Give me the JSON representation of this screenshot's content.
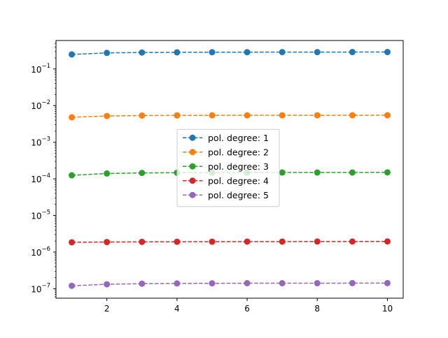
{
  "chart_data": {
    "type": "line",
    "title": "",
    "xlabel": "",
    "ylabel": "",
    "yscale": "log",
    "xlim": [
      0.55,
      10.45
    ],
    "ylim": [
      5.5e-08,
      0.6
    ],
    "x_ticks": [
      2,
      4,
      6,
      8,
      10
    ],
    "x_tick_labels": [
      "2",
      "4",
      "6",
      "8",
      "10"
    ],
    "y_ticks": [
      1e-07,
      1e-06,
      1e-05,
      0.0001,
      0.001,
      0.01,
      0.1
    ],
    "y_tick_labels": [
      {
        "base": "10",
        "exp": "−7"
      },
      {
        "base": "10",
        "exp": "−6"
      },
      {
        "base": "10",
        "exp": "−5"
      },
      {
        "base": "10",
        "exp": "−4"
      },
      {
        "base": "10",
        "exp": "−3"
      },
      {
        "base": "10",
        "exp": "−2"
      },
      {
        "base": "10",
        "exp": "−1"
      }
    ],
    "grid": false,
    "legend_position": "center",
    "line_style": "dashed",
    "marker": "circle",
    "x": [
      1,
      2,
      3,
      4,
      5,
      6,
      7,
      8,
      9,
      10
    ],
    "series": [
      {
        "name": "pol. degree: 1",
        "color": "#1f77b4",
        "values": [
          0.25,
          0.275,
          0.282,
          0.285,
          0.287,
          0.288,
          0.289,
          0.289,
          0.29,
          0.29
        ]
      },
      {
        "name": "pol. degree: 2",
        "color": "#ff7f0e",
        "values": [
          0.0048,
          0.0052,
          0.00535,
          0.0054,
          0.00542,
          0.00543,
          0.00544,
          0.00544,
          0.00545,
          0.00545
        ]
      },
      {
        "name": "pol. degree: 3",
        "color": "#2ca02c",
        "values": [
          0.000125,
          0.00014,
          0.000145,
          0.000147,
          0.000148,
          0.000148,
          0.000149,
          0.000149,
          0.000149,
          0.00015
        ]
      },
      {
        "name": "pol. degree: 4",
        "color": "#d62728",
        "values": [
          1.85e-06,
          1.88e-06,
          1.9e-06,
          1.91e-06,
          1.92e-06,
          1.93e-06,
          1.93e-06,
          1.94e-06,
          1.94e-06,
          1.95e-06
        ]
      },
      {
        "name": "pol. degree: 5",
        "color": "#9467bd",
        "values": [
          1.2e-07,
          1.32e-07,
          1.37e-07,
          1.39e-07,
          1.4e-07,
          1.41e-07,
          1.41e-07,
          1.41e-07,
          1.42e-07,
          1.42e-07
        ]
      }
    ]
  }
}
